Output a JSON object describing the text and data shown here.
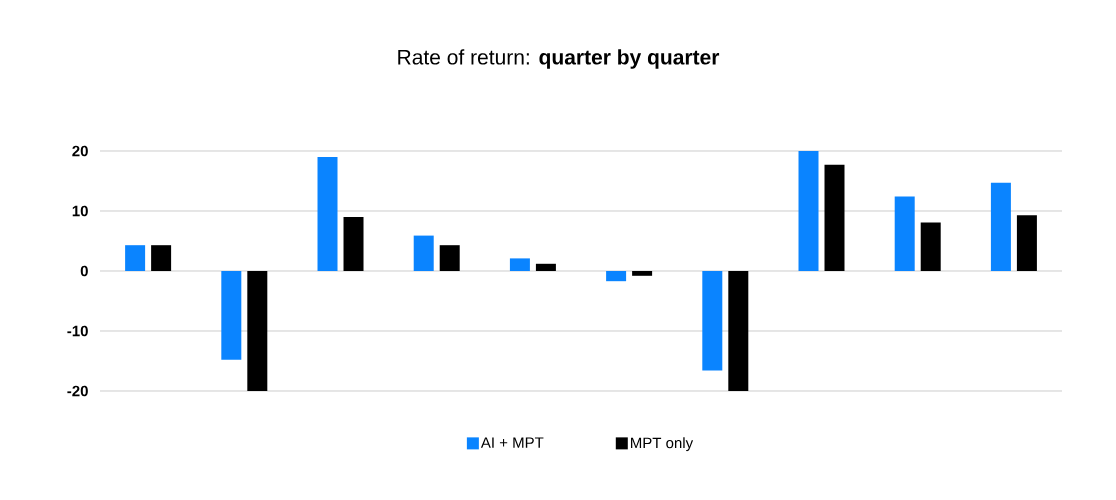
{
  "chart_data": {
    "type": "bar",
    "title": "Rate of return: **quarter by quarter**",
    "categories": [
      null,
      null,
      null,
      null,
      null,
      null,
      null,
      null,
      null,
      null
    ],
    "series": [
      {
        "name": "AI + MPT",
        "color": "#0a84ff",
        "values": [
          4.3,
          -14.8,
          19.0,
          5.9,
          2.1,
          -1.7,
          -16.6,
          20.0,
          12.4,
          14.7
        ]
      },
      {
        "name": "MPT only",
        "color": "#000000",
        "values": [
          4.3,
          -20.0,
          9.0,
          4.3,
          1.2,
          -0.8,
          -20.0,
          17.7,
          8.1,
          9.3
        ]
      }
    ],
    "ylim": [
      -20,
      20
    ],
    "yticks": [
      -20,
      -10,
      0,
      10,
      20
    ],
    "grid": "y",
    "legend": "bottom"
  }
}
